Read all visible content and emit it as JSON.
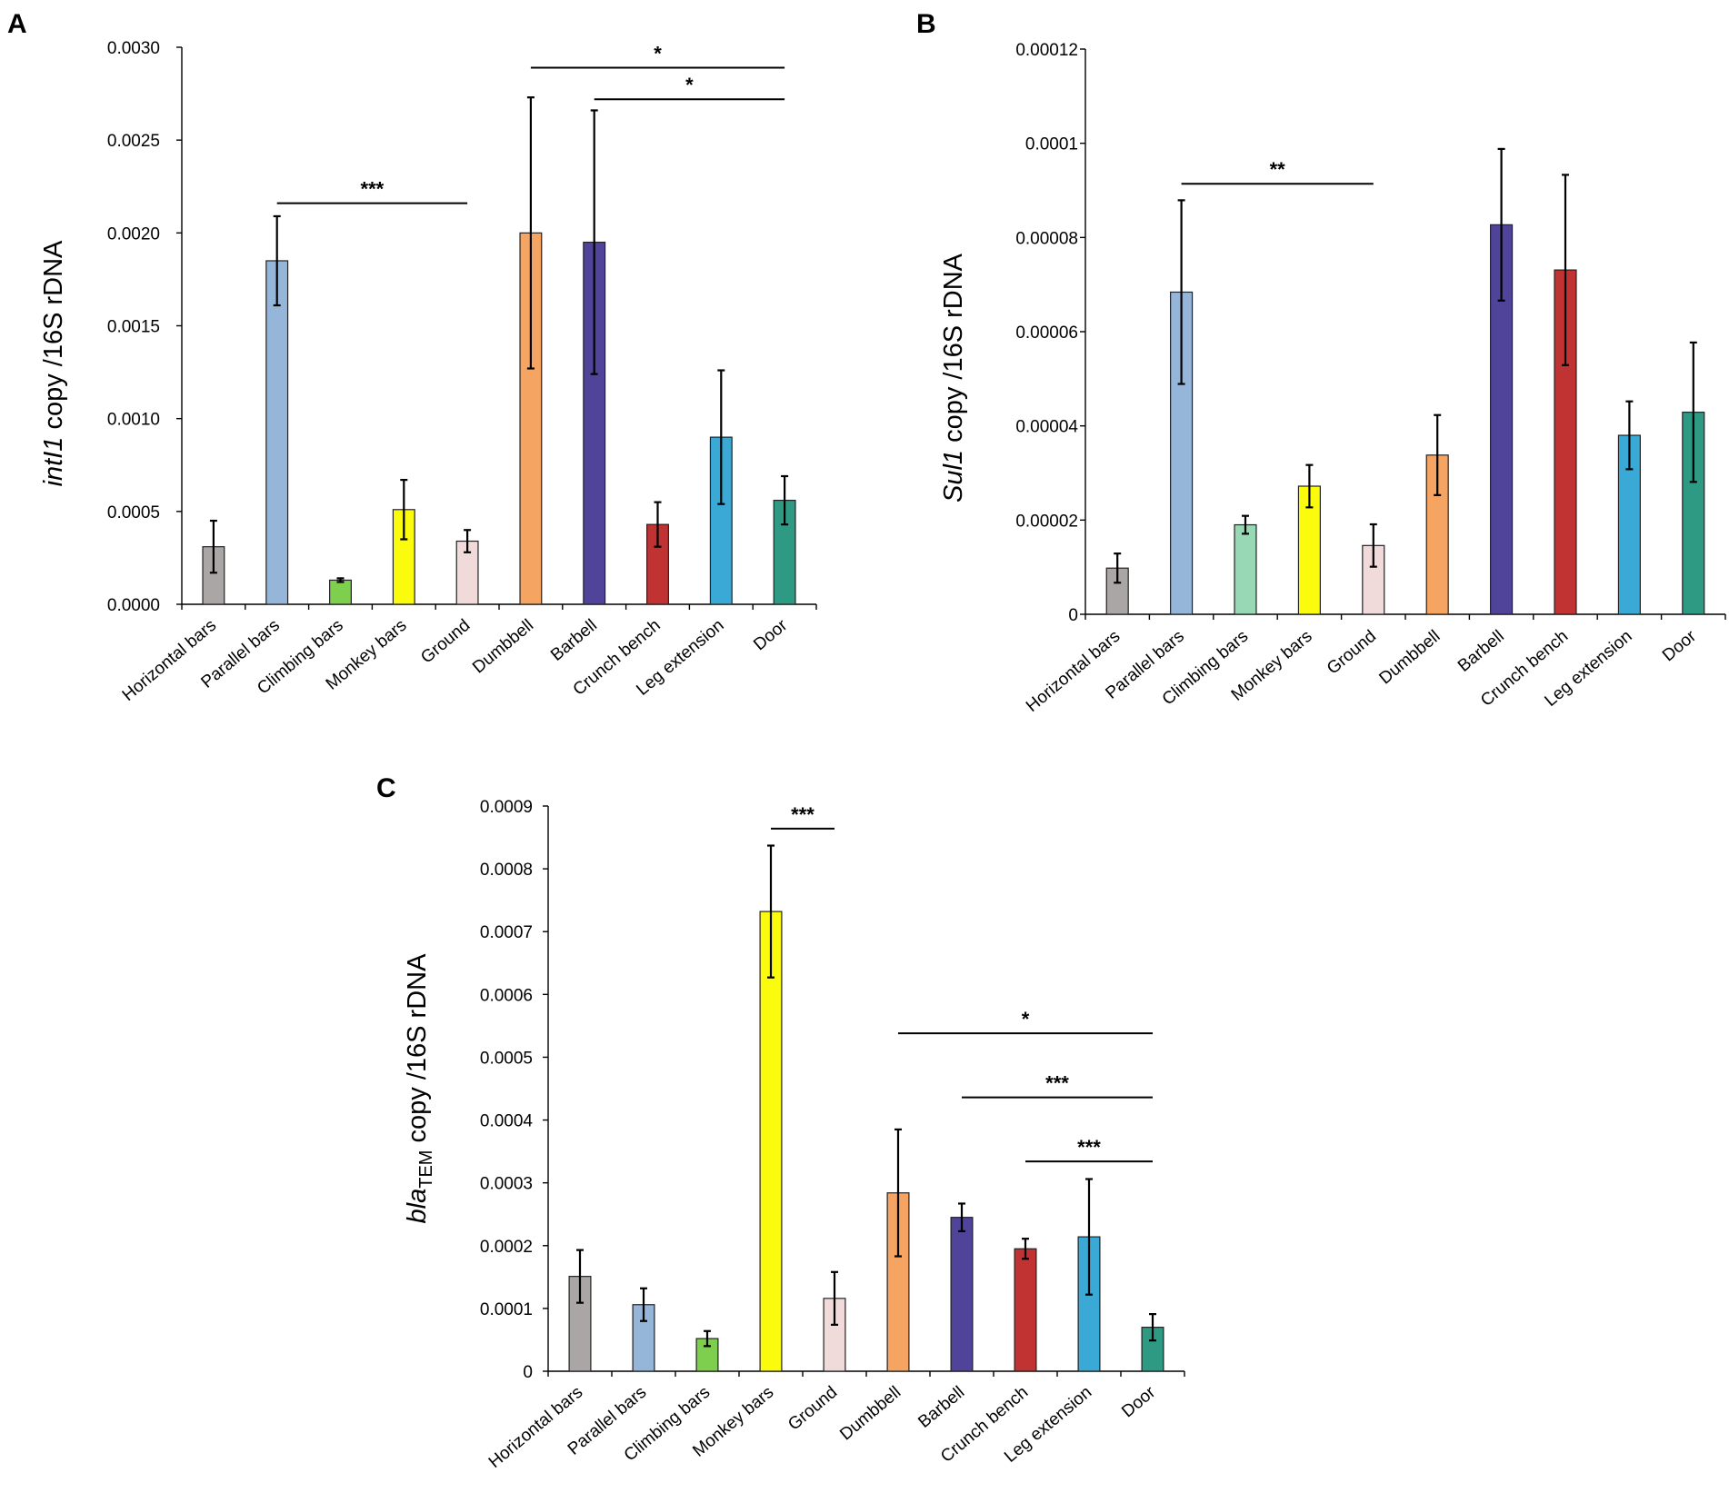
{
  "chart_data": [
    {
      "type": "bar",
      "panel": "A",
      "ylabel_gene": "intI1",
      "ylabel_sub": "",
      "ylabel_rest": " copy /16S rDNA",
      "categories": [
        "Horizontal bars",
        "Parallel bars",
        "Climbing bars",
        "Monkey bars",
        "Ground",
        "Dumbbell",
        "Barbell",
        "Crunch bench",
        "Leg extension",
        "Door"
      ],
      "colors": [
        "#aaa6a6",
        "#95b5d9",
        "#7ecf4e",
        "#fbfb0e",
        "#f1dada",
        "#f6a461",
        "#4f449a",
        "#c13232",
        "#3aa9d5",
        "#2e9a84"
      ],
      "values": [
        0.00031,
        0.00185,
        0.00013,
        0.00051,
        0.00034,
        0.002,
        0.00195,
        0.00043,
        0.0009,
        0.00056
      ],
      "errors": [
        0.00014,
        0.00024,
        1e-05,
        0.00016,
        6e-05,
        0.00073,
        0.00071,
        0.00012,
        0.00036,
        0.00013
      ],
      "ylim": [
        0,
        0.003
      ],
      "yticks": [
        "0.0000",
        "0.0005",
        "0.0010",
        "0.0015",
        "0.0020",
        "0.0025",
        "0.0030"
      ],
      "significance": [
        {
          "from": 1,
          "to": 4,
          "y": 0.00216,
          "label": "***"
        },
        {
          "from": 5,
          "to": 9,
          "y": 0.00289,
          "label": "*"
        },
        {
          "from": 6,
          "to": 9,
          "y": 0.00272,
          "label": "*"
        }
      ]
    },
    {
      "type": "bar",
      "panel": "B",
      "ylabel_gene": "Sul1",
      "ylabel_sub": "",
      "ylabel_rest": " copy /16S rDNA",
      "categories": [
        "Horizontal bars",
        "Parallel bars",
        "Climbing bars",
        "Monkey bars",
        "Ground",
        "Dumbbell",
        "Barbell",
        "Crunch bench",
        "Leg extension",
        "Door"
      ],
      "colors": [
        "#aaa6a6",
        "#95b5d9",
        "#98d8b5",
        "#fbfb0e",
        "#f1dada",
        "#f6a461",
        "#4f449a",
        "#c13232",
        "#3aa9d5",
        "#2e9a84"
      ],
      "values": [
        9.8e-06,
        6.84e-05,
        1.9e-05,
        2.72e-05,
        1.46e-05,
        3.38e-05,
        8.27e-05,
        7.31e-05,
        3.8e-05,
        4.29e-05
      ],
      "errors": [
        3.1e-06,
        1.95e-05,
        1.9e-06,
        4.5e-06,
        4.5e-06,
        8.5e-06,
        1.61e-05,
        2.02e-05,
        7.2e-06,
        1.48e-05
      ],
      "ylim": [
        0,
        0.00012
      ],
      "yticks": [
        "0",
        "0.00002",
        "0.00004",
        "0.00006",
        "0.00008",
        "0.0001",
        "0.00012"
      ],
      "significance": [
        {
          "from": 1,
          "to": 4,
          "y": 9.14e-05,
          "label": "**"
        }
      ]
    },
    {
      "type": "bar",
      "panel": "C",
      "ylabel_gene": "bla",
      "ylabel_sub": "TEM",
      "ylabel_rest": " copy /16S rDNA",
      "categories": [
        "Horizontal bars",
        "Parallel bars",
        "Climbing bars",
        "Monkey bars",
        "Ground",
        "Dumbbell",
        "Barbell",
        "Crunch bench",
        "Leg extension",
        "Door"
      ],
      "colors": [
        "#aaa6a6",
        "#95b5d9",
        "#7ecf4e",
        "#fbfb0e",
        "#f1dada",
        "#f6a461",
        "#4f449a",
        "#c13232",
        "#3aa9d5",
        "#2e9a84"
      ],
      "values": [
        0.000151,
        0.000106,
        5.2e-05,
        0.000732,
        0.000116,
        0.000284,
        0.000245,
        0.000195,
        0.000214,
        7e-05
      ],
      "errors": [
        4.2e-05,
        2.6e-05,
        1.2e-05,
        0.000105,
        4.2e-05,
        0.000101,
        2.2e-05,
        1.6e-05,
        9.2e-05,
        2.1e-05
      ],
      "ylim": [
        0,
        0.0009
      ],
      "yticks": [
        "0",
        "0.0001",
        "0.0002",
        "0.0003",
        "0.0004",
        "0.0005",
        "0.0006",
        "0.0007",
        "0.0008",
        "0.0009"
      ],
      "significance": [
        {
          "from": 3,
          "to": 4,
          "y": 0.000864,
          "label": "***"
        },
        {
          "from": 5,
          "to": 9,
          "y": 0.000538,
          "label": "*"
        },
        {
          "from": 6,
          "to": 9,
          "y": 0.000436,
          "label": "***"
        },
        {
          "from": 7,
          "to": 9,
          "y": 0.000334,
          "label": "***"
        }
      ]
    }
  ]
}
